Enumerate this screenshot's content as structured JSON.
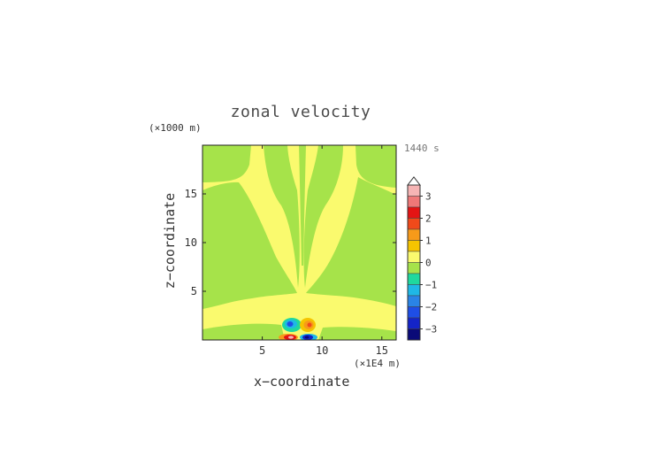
{
  "chart_data": {
    "type": "heatmap",
    "title": "zonal velocity",
    "xlabel": "x−coordinate",
    "ylabel": "z−coordinate",
    "x_unit_label": "(×1E4 m)",
    "y_unit_label": "(×1000 m)",
    "time_label": "1440 s",
    "xlim": [
      0,
      16.2
    ],
    "ylim": [
      0,
      20
    ],
    "x_ticks": [
      5,
      10,
      15
    ],
    "y_ticks": [
      5,
      10,
      15
    ],
    "colorbar": {
      "tick_labels": [
        "3",
        "2",
        "1",
        "0",
        "−1",
        "−2",
        "−3"
      ],
      "tick_values": [
        3,
        2,
        1,
        0,
        -1,
        -2,
        -3
      ],
      "range": [
        -3.5,
        3.5
      ],
      "extend": "max",
      "bins": [
        {
          "lo": 3.0,
          "hi": 3.5,
          "color": "#f6b4b4"
        },
        {
          "lo": 2.5,
          "hi": 3.0,
          "color": "#ef7878"
        },
        {
          "lo": 2.0,
          "hi": 2.5,
          "color": "#e41414"
        },
        {
          "lo": 1.5,
          "hi": 2.0,
          "color": "#f04a1a"
        },
        {
          "lo": 1.0,
          "hi": 1.5,
          "color": "#f79a1a"
        },
        {
          "lo": 0.5,
          "hi": 1.0,
          "color": "#f5c400"
        },
        {
          "lo": 0.0,
          "hi": 0.5,
          "color": "#fafa6e"
        },
        {
          "lo": -0.5,
          "hi": 0.0,
          "color": "#a6e34a"
        },
        {
          "lo": -1.0,
          "hi": -0.5,
          "color": "#1fd89e"
        },
        {
          "lo": -1.5,
          "hi": -1.0,
          "color": "#1fb8e6"
        },
        {
          "lo": -2.0,
          "hi": -1.5,
          "color": "#2a84e6"
        },
        {
          "lo": -2.5,
          "hi": -2.0,
          "color": "#1e4ee6"
        },
        {
          "lo": -3.0,
          "hi": -2.5,
          "color": "#1424c8"
        },
        {
          "lo": -3.5,
          "hi": -3.0,
          "color": "#0a0a78"
        }
      ]
    }
  }
}
